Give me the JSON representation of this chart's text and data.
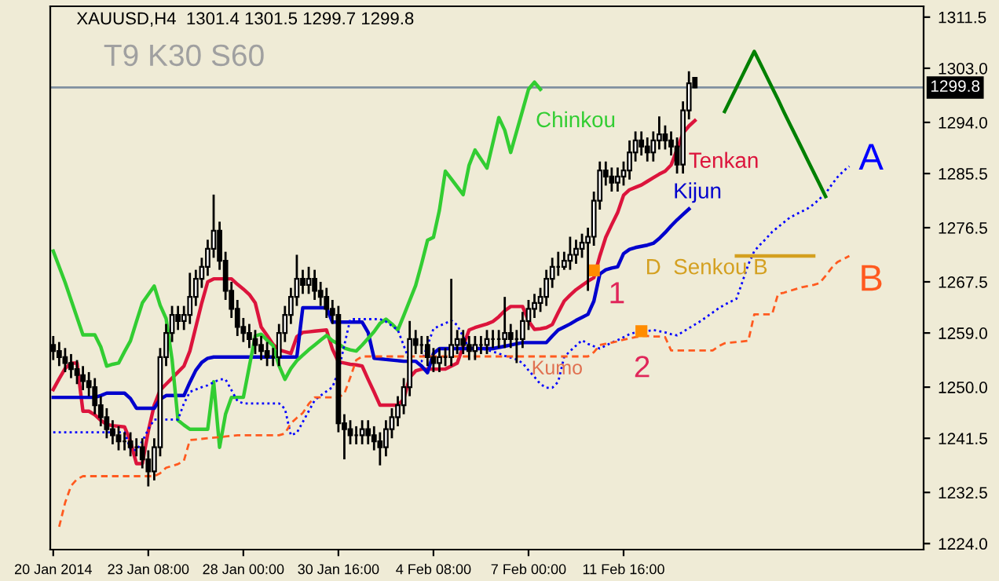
{
  "chart_data": {
    "type": "candlestick",
    "title": "XAUUSD,H4  1301.4 1301.5 1299.7 1299.8",
    "annotations": [
      "T9 K30 S60",
      "Kumo",
      "1",
      "2"
    ],
    "categories": [
      "20 Jan 2014",
      null,
      null,
      null,
      null,
      null,
      null,
      null,
      null,
      null,
      null,
      null,
      null,
      null,
      null,
      null,
      "23 Jan 08:00",
      null,
      null,
      null,
      null,
      null,
      null,
      null,
      null,
      null,
      null,
      null,
      null,
      null,
      null,
      null,
      "28 Jan 00:00",
      null,
      null,
      null,
      null,
      null,
      null,
      null,
      null,
      null,
      null,
      null,
      null,
      null,
      null,
      null,
      "30 Jan 16:00",
      null,
      null,
      null,
      null,
      null,
      null,
      null,
      null,
      null,
      null,
      null,
      null,
      null,
      null,
      null,
      "4 Feb 08:00",
      null,
      null,
      null,
      null,
      null,
      null,
      null,
      null,
      null,
      null,
      null,
      null,
      null,
      null,
      null,
      "7 Feb 00:00",
      null,
      null,
      null,
      null,
      null,
      null,
      null,
      null,
      null,
      null,
      null,
      null,
      null,
      null,
      null,
      "11 Feb 16:00",
      null,
      null,
      null,
      null,
      null,
      null,
      null,
      null,
      null,
      null,
      null,
      null,
      null,
      null,
      null,
      null,
      null,
      null,
      null,
      null,
      null,
      null,
      null,
      null,
      null,
      null,
      null,
      null,
      null,
      null,
      null,
      null,
      null,
      null,
      null,
      null,
      null,
      null,
      null,
      null,
      null,
      null,
      null,
      null,
      null,
      null,
      null,
      null,
      null,
      null
    ],
    "ohlc": [
      [
        1257,
        1258.5,
        1254.5,
        1256
      ],
      [
        1256,
        1257.5,
        1253.5,
        1255
      ],
      [
        1255,
        1256.5,
        1252.5,
        1254
      ],
      [
        1254,
        1255.5,
        1251.5,
        1253
      ],
      [
        1253,
        1254.5,
        1250.5,
        1252
      ],
      [
        1252,
        1253.5,
        1249.5,
        1251
      ],
      [
        1251,
        1252.5,
        1248.5,
        1250
      ],
      [
        1250,
        1251.5,
        1245.5,
        1247
      ],
      [
        1247,
        1248.5,
        1243.5,
        1245
      ],
      [
        1245,
        1246.5,
        1241.5,
        1243
      ],
      [
        1243,
        1244.5,
        1240.5,
        1242
      ],
      [
        1242,
        1243.5,
        1239.5,
        1241
      ],
      [
        1241,
        1242.5,
        1239.5,
        1241
      ],
      [
        1241,
        1242.5,
        1238.5,
        1240
      ],
      [
        1240,
        1241.5,
        1238.5,
        1240
      ],
      [
        1240,
        1241.5,
        1236.5,
        1238
      ],
      [
        1238,
        1239.5,
        1233.5,
        1236
      ],
      [
        1236,
        1241.5,
        1234.5,
        1240
      ],
      [
        1240,
        1256.5,
        1238.5,
        1255
      ],
      [
        1255,
        1260.5,
        1253.5,
        1259
      ],
      [
        1259,
        1263.5,
        1257.5,
        1262
      ],
      [
        1262,
        1263.5,
        1259.5,
        1261
      ],
      [
        1261,
        1263.5,
        1259.5,
        1262
      ],
      [
        1262,
        1269,
        1260.5,
        1265
      ],
      [
        1265,
        1269.5,
        1263.5,
        1268
      ],
      [
        1268,
        1271.5,
        1266.5,
        1270
      ],
      [
        1270,
        1274.5,
        1268.5,
        1273
      ],
      [
        1273,
        1282,
        1271.5,
        1276
      ],
      [
        1276,
        1277.5,
        1269.5,
        1271
      ],
      [
        1271,
        1272.5,
        1264.5,
        1266
      ],
      [
        1266,
        1267.5,
        1261.5,
        1263
      ],
      [
        1263,
        1264.5,
        1258.5,
        1260
      ],
      [
        1260,
        1261.5,
        1257.5,
        1259
      ],
      [
        1259,
        1260.5,
        1256.5,
        1258
      ],
      [
        1258,
        1259.5,
        1255.5,
        1257
      ],
      [
        1257,
        1258.5,
        1254.5,
        1256
      ],
      [
        1256,
        1257.5,
        1253.5,
        1255
      ],
      [
        1255,
        1256.5,
        1253.5,
        1255
      ],
      [
        1255,
        1260.5,
        1253.5,
        1259
      ],
      [
        1259,
        1263.5,
        1257.5,
        1262
      ],
      [
        1262,
        1266.5,
        1260.5,
        1265
      ],
      [
        1265,
        1272,
        1263.5,
        1268
      ],
      [
        1268,
        1269.5,
        1265.5,
        1267
      ],
      [
        1267,
        1270,
        1265.5,
        1268
      ],
      [
        1268,
        1269.5,
        1264.5,
        1266
      ],
      [
        1266,
        1267.5,
        1263.5,
        1265
      ],
      [
        1265,
        1266.5,
        1261.5,
        1263
      ],
      [
        1263,
        1264.5,
        1260.5,
        1262
      ],
      [
        1262,
        1263.5,
        1242.5,
        1244
      ],
      [
        1244,
        1245.5,
        1238,
        1243
      ],
      [
        1243,
        1244.5,
        1240.5,
        1242
      ],
      [
        1242,
        1243.5,
        1240.5,
        1242
      ],
      [
        1242,
        1244.5,
        1240.5,
        1243
      ],
      [
        1243,
        1244.5,
        1240.5,
        1242
      ],
      [
        1242,
        1243.5,
        1239.5,
        1241
      ],
      [
        1241,
        1242.5,
        1237,
        1240
      ],
      [
        1240,
        1244.5,
        1238.5,
        1243
      ],
      [
        1243,
        1246.5,
        1241.5,
        1245
      ],
      [
        1245,
        1248.5,
        1243.5,
        1247
      ],
      [
        1247,
        1251.5,
        1245.5,
        1250
      ],
      [
        1250,
        1261,
        1248.5,
        1258
      ],
      [
        1258,
        1259.5,
        1255.5,
        1257
      ],
      [
        1257,
        1258.5,
        1255.5,
        1257
      ],
      [
        1257,
        1258.5,
        1253.5,
        1255
      ],
      [
        1255,
        1256.5,
        1252.5,
        1254
      ],
      [
        1254,
        1256.5,
        1252.5,
        1255
      ],
      [
        1255,
        1256.5,
        1253.5,
        1255
      ],
      [
        1255,
        1268,
        1253.5,
        1257
      ],
      [
        1257,
        1259.5,
        1255.5,
        1258
      ],
      [
        1258,
        1259.5,
        1255.5,
        1257
      ],
      [
        1257,
        1258.5,
        1254.5,
        1256
      ],
      [
        1256,
        1258.5,
        1254.5,
        1257
      ],
      [
        1257,
        1258.5,
        1255.5,
        1257
      ],
      [
        1257,
        1259.5,
        1255.5,
        1258
      ],
      [
        1258,
        1259.5,
        1256.5,
        1258
      ],
      [
        1258,
        1259.5,
        1256.5,
        1258
      ],
      [
        1258,
        1265,
        1256.5,
        1259
      ],
      [
        1259,
        1260.5,
        1256.5,
        1258
      ],
      [
        1258,
        1259.5,
        1254,
        1258
      ],
      [
        1258,
        1262.5,
        1256.5,
        1261
      ],
      [
        1261,
        1264.5,
        1259.5,
        1263
      ],
      [
        1263,
        1265.5,
        1261.5,
        1264
      ],
      [
        1264,
        1266.5,
        1262.5,
        1265
      ],
      [
        1265,
        1269.5,
        1263.5,
        1268
      ],
      [
        1268,
        1271.5,
        1266.5,
        1270
      ],
      [
        1270,
        1272.5,
        1268.5,
        1270
      ],
      [
        1270,
        1272.5,
        1269.5,
        1271
      ],
      [
        1271,
        1275,
        1269.5,
        1272
      ],
      [
        1272,
        1274.5,
        1270.5,
        1273
      ],
      [
        1273,
        1275.5,
        1271.5,
        1274
      ],
      [
        1274,
        1276.5,
        1266,
        1275
      ],
      [
        1275,
        1282.5,
        1273.5,
        1281
      ],
      [
        1281,
        1287.5,
        1279.5,
        1286
      ],
      [
        1286,
        1287.5,
        1283.5,
        1285
      ],
      [
        1285,
        1286.5,
        1282.5,
        1284
      ],
      [
        1284,
        1286.5,
        1282.5,
        1285
      ],
      [
        1285,
        1287.5,
        1283.5,
        1286
      ],
      [
        1286,
        1291,
        1284.5,
        1289
      ],
      [
        1289,
        1292.5,
        1287.5,
        1291
      ],
      [
        1291,
        1292.5,
        1288.5,
        1290
      ],
      [
        1290,
        1291.5,
        1287.5,
        1289
      ],
      [
        1289,
        1292.5,
        1287.5,
        1291
      ],
      [
        1291,
        1295,
        1289.5,
        1292
      ],
      [
        1292,
        1293.5,
        1289.5,
        1291
      ],
      [
        1291,
        1292.5,
        1288.5,
        1290
      ],
      [
        1290,
        1291.5,
        1285.5,
        1287
      ],
      [
        1287,
        1297.5,
        1285.5,
        1296
      ],
      [
        1296,
        1302.5,
        1294.5,
        1300.5
      ],
      [
        1301.4,
        1301.5,
        1299.7,
        1299.8
      ],
      null,
      null,
      null,
      null,
      null,
      null,
      null,
      null,
      null,
      null,
      null,
      null,
      null,
      null,
      null,
      null,
      null,
      null,
      null,
      null,
      null,
      null,
      null,
      null,
      null,
      null,
      null,
      null,
      null,
      null,
      null,
      null,
      null,
      null,
      null,
      null,
      null,
      null
    ],
    "color": "#000000",
    "series": [
      {
        "name": "Tenkan",
        "type": "line",
        "color": "#dc143c",
        "line_style": "solid",
        "values": [
          1249.6,
          1251.4,
          1253.1,
          1254,
          1254,
          1246,
          1246,
          1245.4,
          1244.5,
          1243.8,
          1243.6,
          1243.5,
          1243.4,
          1241,
          1237.3,
          1237.3,
          1242.7,
          1247,
          1249.5,
          1250.5,
          1251.5,
          1252.5,
          1253.5,
          1256,
          1260,
          1264,
          1267.5,
          1268,
          1268,
          1268,
          1268,
          1267.1,
          1266.3,
          1265.4,
          1264,
          1260,
          1258.6,
          1257.1,
          1256.2,
          1255.9,
          1255.6,
          1258.4,
          1259.1,
          1259.2,
          1259.3,
          1259.4,
          1259.5,
          1256.3,
          1254.2,
          1254,
          1253.8,
          1253.7,
          1253.5,
          1251.3,
          1249.2,
          1247,
          1247,
          1247,
          1247,
          1248,
          1251.6,
          1252.7,
          1253,
          1253,
          1253,
          1253,
          1253,
          1253.5,
          1254,
          1256.8,
          1259.5,
          1259.9,
          1260.2,
          1260.5,
          1260.9,
          1261.7,
          1262.7,
          1263.4,
          1263.4,
          1263.4,
          1261,
          1259.6,
          1259.7,
          1259.9,
          1260.4,
          1262.4,
          1264.3,
          1265.3,
          1266.2,
          1266.9,
          1267.6,
          1268.2,
          1271.8,
          1274.9,
          1277,
          1279,
          1281.9,
          1282.8,
          1283.2,
          1283.6,
          1284.2,
          1284.8,
          1285.4,
          1285.9,
          1286.9,
          1289.5,
          1292.2,
          1293.4,
          1294.3,
          null,
          null,
          null,
          null,
          null,
          null,
          null,
          null,
          null,
          null,
          null,
          null,
          null,
          null,
          null,
          null,
          null,
          null,
          null,
          null,
          null,
          null,
          null,
          null,
          null,
          null,
          null,
          null,
          null,
          null,
          null,
          null,
          null,
          null,
          null,
          null,
          null,
          null
        ]
      },
      {
        "name": "Kijun",
        "type": "line",
        "color": "#0000cd",
        "line_style": "solid",
        "values": [
          1248.3,
          1248.3,
          1248.3,
          1248.3,
          1248.3,
          1248.3,
          1248.3,
          1248.3,
          1248.6,
          1249,
          1249,
          1249,
          1249,
          1248.1,
          1246.5,
          1246.5,
          1246.5,
          1246.5,
          1248,
          1248.6,
          1248.6,
          1248.6,
          1248.6,
          1250.8,
          1252.8,
          1254.1,
          1254.8,
          1255,
          1255,
          1255,
          1255,
          1255,
          1255,
          1255,
          1255,
          1255,
          1255,
          1255,
          1255,
          1255,
          1255,
          1255,
          1263.2,
          1263.2,
          1263.2,
          1263.2,
          1263.2,
          1260.8,
          1260.8,
          1260.8,
          1260.8,
          1260.8,
          1260.8,
          1259.1,
          1254.8,
          1254.7,
          1254.6,
          1254.5,
          1254.4,
          1254.3,
          1254.3,
          1254.3,
          1253.5,
          1252.4,
          1255.6,
          1256.4,
          1256.4,
          1256.4,
          1256.4,
          1256.4,
          1256.4,
          1256.4,
          1256.4,
          1256.4,
          1256.4,
          1256.6,
          1256.8,
          1257,
          1257.2,
          1257.4,
          1257.4,
          1257.4,
          1257.4,
          1257.4,
          1258.5,
          1259.5,
          1260,
          1260.5,
          1261.1,
          1261.6,
          1262.1,
          1264.3,
          1268.8,
          1269.5,
          1269.8,
          1270,
          1272.2,
          1272.9,
          1273.2,
          1273.4,
          1273.6,
          1273.9,
          1274.7,
          1275.7,
          1276.8,
          1277.8,
          1278.7,
          1279.6,
          null,
          null,
          null,
          null,
          null,
          null,
          null,
          null,
          null,
          null,
          null,
          null,
          null,
          null,
          null,
          null,
          null,
          null,
          null,
          null,
          null,
          null,
          null,
          null,
          null,
          null,
          null,
          null,
          null,
          null,
          null,
          null,
          null,
          null,
          null,
          null,
          null,
          null,
          null
        ]
      },
      {
        "name": "Chinkou",
        "type": "line",
        "color": "#32cd32",
        "line_style": "solid",
        "values": [
          1272.6,
          1270,
          1267.4,
          1264.5,
          1261.6,
          1258.7,
          1258.7,
          1258.7,
          1256.7,
          1253.5,
          1253.8,
          1254,
          1255.9,
          1257.7,
          1260.9,
          1264,
          1265.4,
          1266.8,
          1263.6,
          1261.4,
          1254.6,
          1244.5,
          1243.7,
          1243,
          1243,
          1243,
          1243,
          1250.9,
          1240,
          1245.5,
          1248.3,
          1248.3,
          1248.3,
          1253.4,
          1258.5,
          1258.8,
          1257.8,
          1256.9,
          1253.6,
          1251.3,
          1253.1,
          1254.4,
          1255.3,
          1256.2,
          1257,
          1257.8,
          1258.6,
          1257.7,
          1257.2,
          1256.5,
          1256.2,
          1256,
          1257,
          1258.1,
          1259.2,
          1260.6,
          1261.3,
          1260.5,
          1259.5,
          1261.9,
          1264.4,
          1266.9,
          1270.5,
          1274.4,
          1274.9,
          1279.4,
          1285.9,
          1284.6,
          1283.3,
          1282,
          1286.9,
          1289.4,
          1287.9,
          1286.4,
          1290.6,
          1294.8,
          1292.7,
          1289,
          1292.5,
          1296,
          1299.5,
          1300.7,
          1299.5,
          null,
          null,
          null,
          null,
          null,
          null,
          null,
          null,
          null,
          null,
          null,
          null,
          null,
          null,
          null,
          null,
          null,
          null,
          null,
          null,
          null,
          null,
          null,
          null,
          null,
          null,
          null,
          null,
          null,
          null,
          null,
          null,
          null,
          null,
          null,
          null,
          null,
          null,
          null,
          null,
          null,
          null,
          null,
          null,
          null,
          null,
          null,
          null,
          null,
          null,
          null,
          null,
          null,
          null,
          null,
          null,
          null,
          null,
          null,
          null,
          null,
          null,
          null,
          null
        ]
      },
      {
        "name": "A",
        "type": "line",
        "color": "#0000ff",
        "line_style": "dotted",
        "values": [
          1242.5,
          1242.5,
          1242.5,
          1242.5,
          1242.5,
          1242.5,
          1242.5,
          1242.5,
          1242.5,
          1242.5,
          1242.5,
          1242.5,
          1242.5,
          1239.7,
          1239.5,
          1241,
          1243,
          1244.6,
          1244.6,
          1244.6,
          1244.6,
          1244.6,
          1247.3,
          1249.2,
          1249.6,
          1250,
          1250.3,
          1250.8,
          1251.3,
          1251.3,
          1249.5,
          1247.7,
          1247.3,
          1247.3,
          1247.3,
          1247.3,
          1247.3,
          1247.3,
          1247.3,
          1246.4,
          1242,
          1242.4,
          1244.2,
          1246,
          1247.8,
          1248.6,
          1249.3,
          1250,
          1252.6,
          1257,
          1261.3,
          1261.3,
          1261.3,
          1261.3,
          1261.3,
          1261.3,
          1260.9,
          1260.2,
          1259.5,
          1256.9,
          1254.3,
          1254.3,
          1254.3,
          1256.9,
          1259.7,
          1260.2,
          1260.6,
          1261.1,
          1260.3,
          1258.4,
          1256.4,
          1256.4,
          1256.4,
          1256.2,
          1255.9,
          1255.6,
          1255.2,
          1254.9,
          1254.6,
          1254,
          1252.8,
          1251.7,
          1250.5,
          1249.9,
          1249.9,
          1250.9,
          1255,
          1256,
          1256.9,
          1257.8,
          1257.2,
          1256.8,
          1256.4,
          1256.9,
          1257.4,
          1257.8,
          1258.3,
          1258.8,
          1259.1,
          1259.2,
          1259.3,
          1259.5,
          1259.3,
          1259.1,
          1258.8,
          1258.6,
          1259.2,
          1259.8,
          1260.4,
          1261,
          1261.7,
          1262.4,
          1263.1,
          1263.7,
          1264.2,
          1264.7,
          1267.5,
          1270.4,
          1272.6,
          1273.7,
          1274.7,
          1275.8,
          1276.6,
          1277.4,
          1278.2,
          1278.7,
          1279.2,
          1279.7,
          1280.4,
          1281.3,
          1282.2,
          1283.6,
          1284.9,
          1285.9,
          1286.7,
          null,
          null,
          null,
          null,
          null,
          null,
          null,
          null,
          null,
          null,
          null,
          null
        ]
      },
      {
        "name": "B",
        "type": "line",
        "color": "#ff5a1f",
        "line_style": "dashed",
        "values": [
          null,
          1226.8,
          1230.8,
          1233.6,
          1234.7,
          1235.2,
          1235.2,
          1235.2,
          1235.2,
          1235.2,
          1235.2,
          1235.2,
          1235.2,
          1235.2,
          1235.2,
          1235.2,
          1235.2,
          1235.2,
          1235.7,
          1236.6,
          1236.9,
          1237.2,
          1237.8,
          1241.2,
          1241.3,
          1241.4,
          1241.5,
          1241.6,
          1241.7,
          1241.8,
          1241.9,
          1242,
          1242,
          1242,
          1242,
          1242,
          1242,
          1242,
          1242,
          1242.3,
          1244,
          1244.9,
          1245.7,
          1247.2,
          1248.3,
          1248.3,
          1248.3,
          1248.3,
          1248.3,
          1248.9,
          1251.6,
          1254.5,
          1255.1,
          1255.1,
          1255.1,
          1255.1,
          1255.1,
          1255.1,
          1255.1,
          1255.1,
          1255.1,
          1255.1,
          1255.1,
          1255.1,
          1255.1,
          1255.1,
          1255.1,
          1255.1,
          1255.1,
          1255.1,
          1255.1,
          1255.1,
          1255.1,
          1255.1,
          1255.1,
          1255.1,
          1255.1,
          1255.1,
          1255.1,
          1255.1,
          1255.1,
          1255.1,
          1255.1,
          1255.1,
          1255.1,
          1255.1,
          1255.1,
          1255.1,
          1255.1,
          1255.1,
          1255.1,
          1255.8,
          1257,
          1257.2,
          1257.4,
          1257.6,
          1257.9,
          1258.1,
          1258.3,
          1258.5,
          1258.5,
          1258.4,
          1258.4,
          1258.3,
          1256.1,
          1256.1,
          1256.1,
          1256.1,
          1256.1,
          1256.1,
          1256.1,
          1256.1,
          1256.8,
          1257.3,
          1257.4,
          1257.5,
          1257.6,
          1257.7,
          1262.1,
          1262.1,
          1262.1,
          1262.1,
          1265.5,
          1265.7,
          1266,
          1266.3,
          1266.6,
          1266.8,
          1267,
          1267.3,
          1268.5,
          1269.8,
          1270.8,
          1271.3,
          1271.8,
          null,
          null,
          null,
          null,
          null,
          null,
          null,
          null,
          null,
          null,
          null,
          null
        ]
      },
      {
        "name": "D  Senkou B",
        "type": "line",
        "color": "#d4a020",
        "line_style": "solid",
        "values": [
          null,
          null,
          null,
          null,
          null,
          null,
          null,
          null,
          null,
          null,
          null,
          null,
          null,
          null,
          null,
          null,
          null,
          null,
          null,
          null,
          null,
          null,
          null,
          null,
          null,
          null,
          null,
          null,
          null,
          null,
          null,
          null,
          null,
          null,
          null,
          null,
          null,
          null,
          null,
          null,
          null,
          null,
          null,
          null,
          null,
          null,
          null,
          null,
          null,
          null,
          null,
          null,
          null,
          null,
          null,
          null,
          null,
          null,
          null,
          null,
          null,
          null,
          null,
          null,
          null,
          null,
          null,
          null,
          null,
          null,
          null,
          null,
          null,
          null,
          null,
          null,
          null,
          null,
          null,
          null,
          null,
          null,
          null,
          null,
          null,
          null,
          null,
          null,
          null,
          null,
          null,
          null,
          null,
          null,
          null,
          null,
          null,
          null,
          null,
          null,
          null,
          null,
          null,
          null,
          null,
          null,
          null,
          null,
          null,
          null,
          null,
          null,
          null,
          null,
          null,
          1271.8,
          1271.8,
          1271.8,
          1271.8,
          1271.8,
          1271.8,
          1271.8,
          1271.8,
          1271.8,
          1271.8,
          1271.8,
          1271.8,
          1271.8,
          1271.8,
          null,
          null,
          null,
          null,
          null,
          null,
          null,
          null,
          null,
          null,
          null,
          null,
          null,
          null,
          null,
          null,
          null,
          null
        ]
      },
      {
        "type": "line",
        "color": "#008000",
        "line_style": "solid",
        "values": [
          null,
          null,
          null,
          null,
          null,
          null,
          null,
          null,
          null,
          null,
          null,
          null,
          null,
          null,
          null,
          null,
          null,
          null,
          null,
          null,
          null,
          null,
          null,
          null,
          null,
          null,
          null,
          null,
          null,
          null,
          null,
          null,
          null,
          null,
          null,
          null,
          null,
          null,
          null,
          null,
          null,
          null,
          null,
          null,
          null,
          null,
          null,
          null,
          null,
          null,
          null,
          null,
          null,
          null,
          null,
          null,
          null,
          null,
          null,
          null,
          null,
          null,
          null,
          null,
          null,
          null,
          null,
          null,
          null,
          null,
          null,
          null,
          null,
          null,
          null,
          null,
          null,
          null,
          null,
          null,
          null,
          null,
          null,
          null,
          null,
          null,
          null,
          null,
          null,
          null,
          null,
          null,
          null,
          null,
          null,
          null,
          null,
          null,
          null,
          null,
          null,
          null,
          null,
          null,
          null,
          null,
          null,
          null,
          null,
          null,
          null,
          null,
          null,
          1295.8,
          1297.8,
          1299.8,
          1301.8,
          1303.8,
          1305.8,
          1303.8,
          1301.8,
          1299.8,
          1297.8,
          1295.7,
          1293.7,
          1291.7,
          1289.7,
          1287.7,
          1285.7,
          1283.7,
          1281.7,
          null,
          null,
          null,
          null,
          null,
          null,
          null,
          null,
          null,
          null,
          null,
          null,
          null,
          null,
          null,
          null
        ]
      },
      {
        "type": "scatter",
        "color": "#ff8c00",
        "marker": "square",
        "values": [
          null,
          null,
          null,
          null,
          null,
          null,
          null,
          null,
          null,
          null,
          null,
          null,
          null,
          null,
          null,
          null,
          null,
          null,
          null,
          null,
          null,
          null,
          null,
          null,
          null,
          null,
          null,
          null,
          null,
          null,
          null,
          null,
          null,
          null,
          null,
          null,
          null,
          null,
          null,
          null,
          null,
          null,
          null,
          null,
          null,
          null,
          null,
          null,
          null,
          null,
          null,
          null,
          null,
          null,
          null,
          null,
          null,
          null,
          null,
          null,
          null,
          null,
          null,
          null,
          null,
          null,
          null,
          null,
          null,
          null,
          null,
          null,
          null,
          null,
          null,
          null,
          null,
          null,
          null,
          null,
          null,
          null,
          null,
          null,
          null,
          null,
          null,
          null,
          null,
          null,
          null,
          1269.4,
          null,
          null,
          null,
          null,
          null,
          null,
          null,
          1259.3,
          null,
          null,
          null,
          null,
          null,
          null,
          null,
          null,
          null,
          null,
          null,
          null,
          null,
          null,
          null,
          null,
          null,
          null,
          null,
          null,
          null,
          null,
          null,
          null,
          null,
          null,
          null,
          null,
          null,
          null,
          null,
          null,
          null,
          null,
          null,
          null,
          null,
          null,
          null,
          null,
          null,
          null,
          null,
          null,
          null,
          null,
          null
        ]
      }
    ],
    "ref_lines": [
      {
        "axis": "y",
        "value": 1299.8,
        "label": "1299.8",
        "color": "#8090a0"
      }
    ],
    "ylim": [
      1223.0,
      1313.3
    ],
    "yticks": [
      {
        "value": 1224,
        "label": "1224.0"
      },
      {
        "value": 1232.5,
        "label": "1232.5"
      },
      {
        "value": 1241.5,
        "label": "1241.5"
      },
      {
        "value": 1250,
        "label": "1250.0"
      },
      {
        "value": 1259,
        "label": "1259.0"
      },
      {
        "value": 1267.5,
        "label": "1267.5"
      },
      {
        "value": 1276.5,
        "label": "1276.5"
      },
      {
        "value": 1285.5,
        "label": "1285.5"
      },
      {
        "value": 1294,
        "label": "1294.0"
      },
      {
        "value": 1303,
        "label": "1303.0"
      },
      {
        "value": 1311.5,
        "label": "1311.5"
      }
    ],
    "grid": false,
    "legend": false
  }
}
